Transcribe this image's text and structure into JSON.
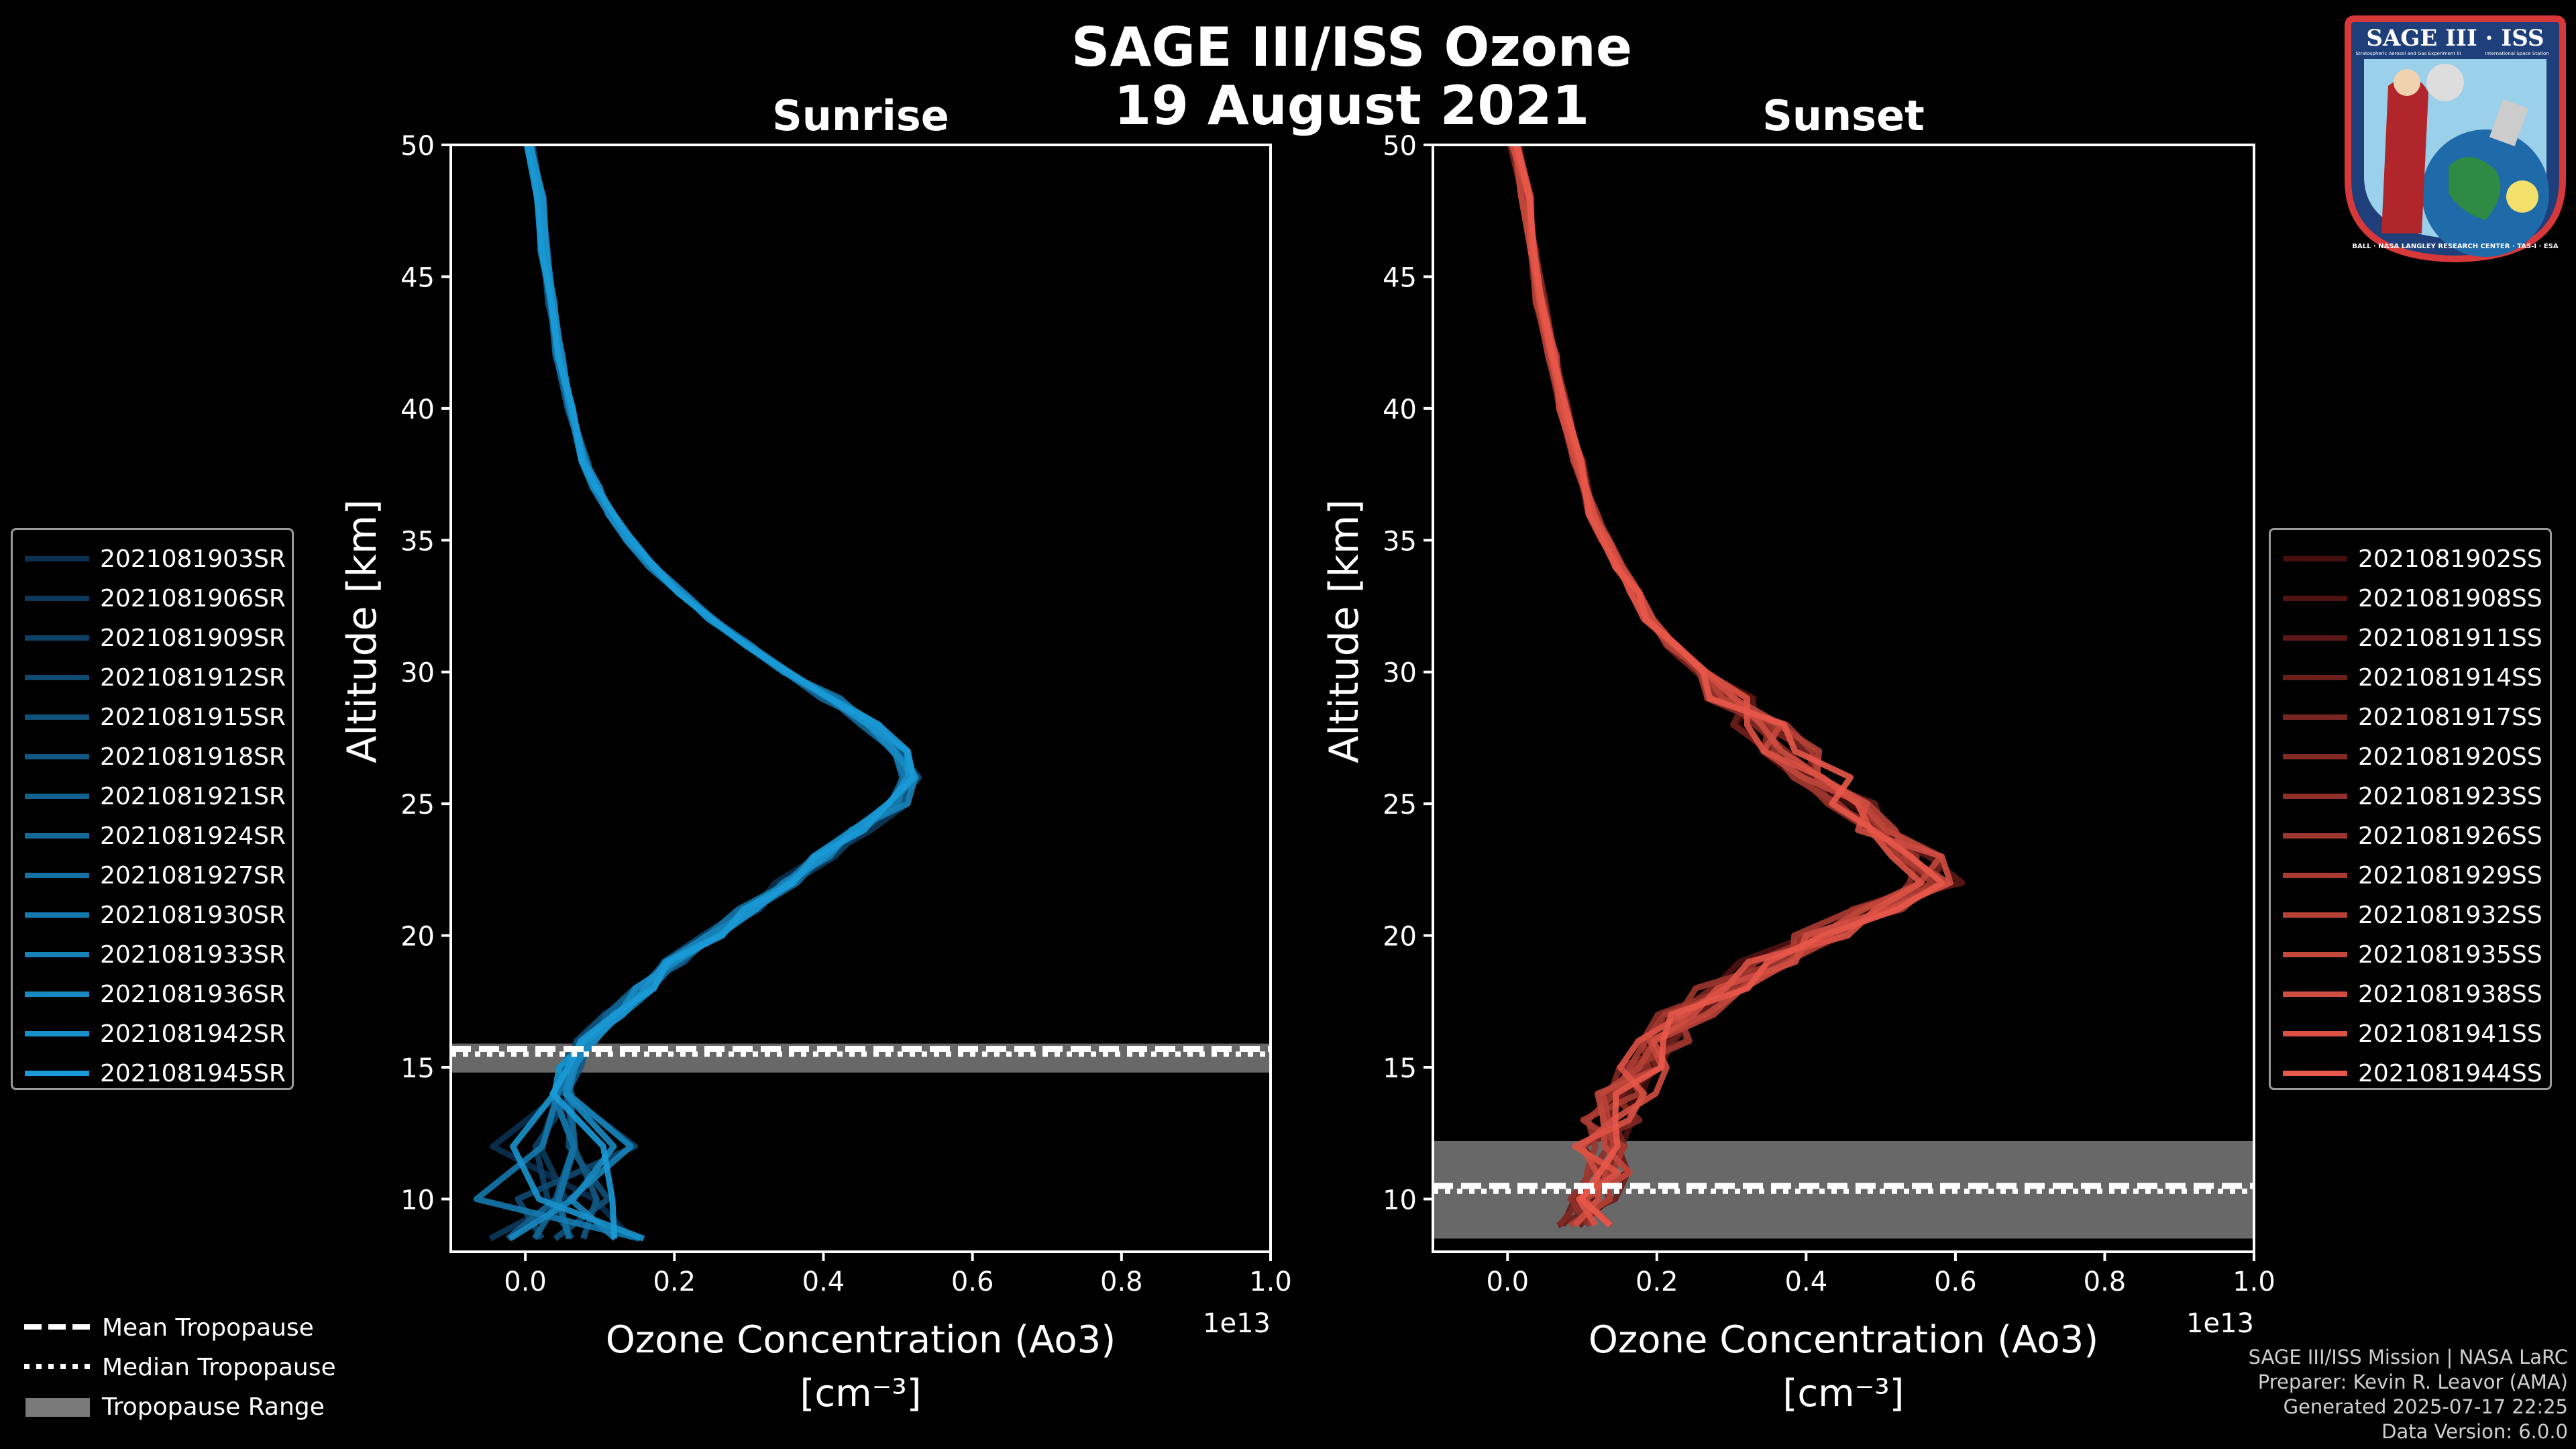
{
  "header": {
    "title_line1": "SAGE III/ISS Ozone",
    "title_line2": "19 August 2021"
  },
  "logo": {
    "text": "SAGE III · ISS",
    "small_left": "Stratospheric Aerosol and Gas Experiment III",
    "small_right": "International Space Station",
    "ring_text": "BALL · NASA LANGLEY RESEARCH CENTER · TAS-I · ESA"
  },
  "colors": {
    "sunrise": "#1a9ad6",
    "sunset": "#e8584a",
    "tropopause_band": "#7a7a7a",
    "background": "#000000"
  },
  "chart_data": [
    {
      "type": "line",
      "title": "Sunrise",
      "xlabel": "Ozone Concentration (Ao3)",
      "xlabel_units": "[cm⁻³]",
      "ylabel": "Altitude [km]",
      "xlim": [
        -0.1,
        1.0
      ],
      "ylim": [
        8,
        50
      ],
      "x_scale_label": "1e13",
      "xticks": [
        "0.0",
        "0.2",
        "0.4",
        "0.6",
        "0.8",
        "1.0"
      ],
      "yticks": [
        "10",
        "15",
        "20",
        "25",
        "30",
        "35",
        "40",
        "45",
        "50"
      ],
      "series_names": [
        "2021081903SR",
        "2021081906SR",
        "2021081909SR",
        "2021081912SR",
        "2021081915SR",
        "2021081918SR",
        "2021081921SR",
        "2021081924SR",
        "2021081927SR",
        "2021081930SR",
        "2021081933SR",
        "2021081936SR",
        "2021081942SR",
        "2021081945SR"
      ],
      "profile": {
        "altitude": [
          8.5,
          10,
          12,
          14,
          15,
          16,
          17,
          18,
          19,
          20,
          21,
          22,
          23,
          24,
          25,
          26,
          27,
          28,
          29,
          30,
          31,
          32,
          33,
          34,
          35,
          36,
          37,
          38,
          40,
          42,
          44,
          46,
          48,
          50
        ],
        "ozone": [
          0.05,
          0.04,
          0.05,
          0.05,
          0.06,
          0.08,
          0.12,
          0.16,
          0.2,
          0.25,
          0.3,
          0.35,
          0.4,
          0.45,
          0.5,
          0.52,
          0.5,
          0.46,
          0.41,
          0.35,
          0.3,
          0.25,
          0.21,
          0.17,
          0.14,
          0.115,
          0.095,
          0.08,
          0.06,
          0.045,
          0.035,
          0.025,
          0.02,
          0.005
        ]
      },
      "tropopause": {
        "mean": 15.7,
        "median": 15.6,
        "range": [
          14.8,
          15.9
        ]
      }
    },
    {
      "type": "line",
      "title": "Sunset",
      "xlabel": "Ozone Concentration (Ao3)",
      "xlabel_units": "[cm⁻³]",
      "ylabel": "Altitude [km]",
      "xlim": [
        -0.1,
        1.0
      ],
      "ylim": [
        8,
        50
      ],
      "x_scale_label": "1e13",
      "xticks": [
        "0.0",
        "0.2",
        "0.4",
        "0.6",
        "0.8",
        "1.0"
      ],
      "yticks": [
        "10",
        "15",
        "20",
        "25",
        "30",
        "35",
        "40",
        "45",
        "50"
      ],
      "series_names": [
        "2021081902SS",
        "2021081908SS",
        "2021081911SS",
        "2021081914SS",
        "2021081917SS",
        "2021081920SS",
        "2021081923SS",
        "2021081926SS",
        "2021081929SS",
        "2021081932SS",
        "2021081935SS",
        "2021081938SS",
        "2021081941SS",
        "2021081944SS"
      ],
      "profile": {
        "altitude": [
          9,
          10,
          11,
          12,
          13,
          14,
          15,
          16,
          17,
          18,
          19,
          20,
          21,
          22,
          23,
          24,
          25,
          26,
          27,
          28,
          29,
          30,
          31,
          32,
          33,
          34,
          35,
          36,
          38,
          40,
          42,
          44,
          46,
          48,
          50
        ],
        "ozone": [
          0.1,
          0.12,
          0.13,
          0.12,
          0.14,
          0.16,
          0.18,
          0.21,
          0.24,
          0.29,
          0.35,
          0.42,
          0.5,
          0.57,
          0.55,
          0.5,
          0.46,
          0.42,
          0.38,
          0.34,
          0.3,
          0.26,
          0.22,
          0.19,
          0.17,
          0.15,
          0.13,
          0.115,
          0.095,
          0.075,
          0.06,
          0.045,
          0.035,
          0.025,
          0.01
        ]
      },
      "tropopause": {
        "mean": 10.5,
        "median": 10.4,
        "range": [
          8.5,
          12.2
        ]
      }
    }
  ],
  "legend_tropopause": {
    "mean": "Mean Tropopause",
    "median": "Median Tropopause",
    "range": "Tropopause Range"
  },
  "credits": {
    "line1": "SAGE III/ISS Mission | NASA LaRC",
    "line2": "Preparer: Kevin R. Leavor (AMA)",
    "line3": "Generated 2025-07-17 22:25",
    "line4": "Data Version: 6.0.0"
  }
}
